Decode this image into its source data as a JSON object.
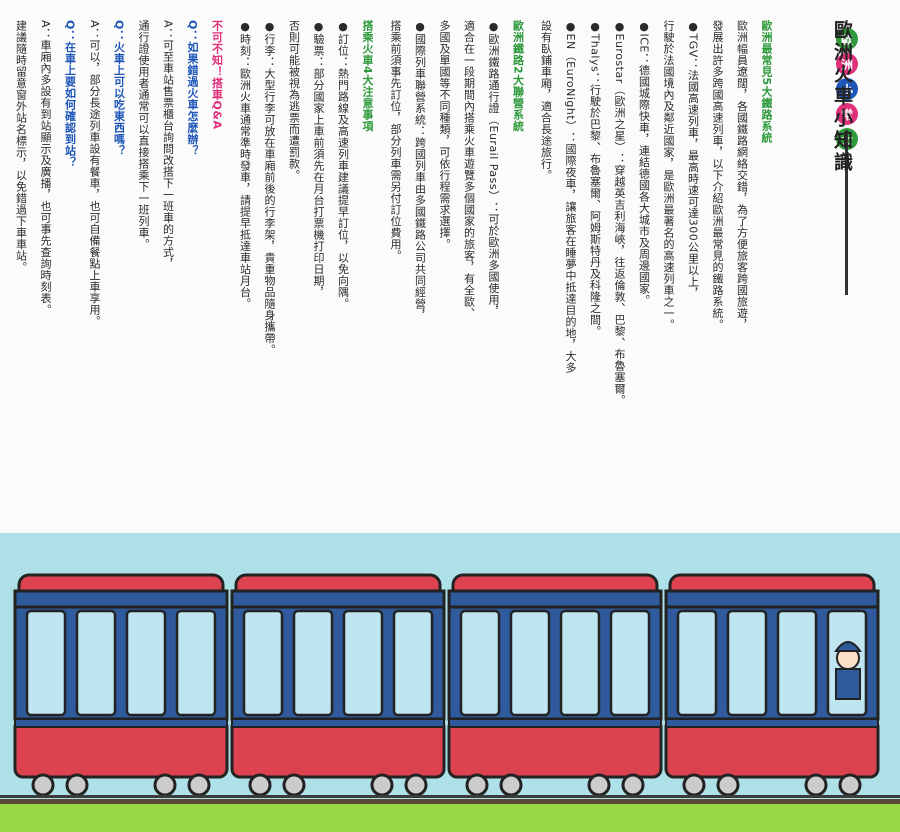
{
  "page": {
    "title": "歐洲火車小知識",
    "badges": [
      "歐",
      "洲",
      "小",
      "常",
      "士"
    ],
    "badge_colors": [
      "#2e9a3c",
      "#e0307a",
      "#1e56b8",
      "#e0307a",
      "#2e9a3c"
    ]
  },
  "columns": [
    {
      "cls": "head",
      "text": "歐洲最常見5大鐵路系統"
    },
    {
      "cls": "",
      "text": "歐洲幅員遼闊，各國鐵路網絡交錯，為了方便旅客跨國旅遊，"
    },
    {
      "cls": "",
      "text": "發展出許多跨國高速列車，以下介紹歐洲最常見的鐵路系統。"
    },
    {
      "cls": "",
      "text": "●TGV：法國高速列車，最高時速可達300公里以上，"
    },
    {
      "cls": "",
      "text": "行駛於法國境內及鄰近國家，是歐洲最著名的高速列車之一。"
    },
    {
      "cls": "",
      "text": "●ICE：德國城際快車，連結德國各大城市及周邊國家。"
    },
    {
      "cls": "",
      "text": "●Eurostar（歐洲之星）：穿越英吉利海峽，往返倫敦、巴黎、布魯塞爾。"
    },
    {
      "cls": "",
      "text": "●Thalys：行駛於巴黎、布魯塞爾、阿姆斯特丹及科隆之間。"
    },
    {
      "cls": "",
      "text": "●EN（EuroNight）：國際夜車，讓旅客在睡夢中抵達目的地，大多"
    },
    {
      "cls": "",
      "text": "設有臥鋪車廂，適合長途旅行。"
    },
    {
      "cls": "head",
      "text": "歐洲鐵路2大聯營系統"
    },
    {
      "cls": "",
      "text": "●歐洲鐵路通行證（Eurail Pass）：可於歐洲多國使用，"
    },
    {
      "cls": "",
      "text": "適合在一段期間內搭乘火車遊覽多個國家的旅客，有全歐、"
    },
    {
      "cls": "",
      "text": "多國及單國等不同種類，可依行程需求選擇。"
    },
    {
      "cls": "",
      "text": "●國際列車聯營系統：跨國列車由多國鐵路公司共同經營，"
    },
    {
      "cls": "",
      "text": "搭乘前須事先訂位，部分列車需另付訂位費用。"
    },
    {
      "cls": "head",
      "text": "搭乘火車4大注意事項"
    },
    {
      "cls": "",
      "text": "●訂位：熱門路線及高速列車建議提早訂位，以免向隅。"
    },
    {
      "cls": "",
      "text": "●驗票：部分國家上車前須先在月台打票機打印日期，"
    },
    {
      "cls": "",
      "text": "否則可能被視為逃票而遭罰款。"
    },
    {
      "cls": "",
      "text": "●行李：大型行李可放在車廂前後的行李架，貴重物品隨身攜帶。"
    },
    {
      "cls": "",
      "text": "●時刻：歐洲火車通常準時發車，請提早抵達車站月台。"
    },
    {
      "cls": "pink",
      "text": "不可不知！搭車Q&A"
    },
    {
      "cls": "q",
      "text": "Q：如果錯過火車怎麼辦？"
    },
    {
      "cls": "",
      "text": "A：可至車站售票櫃台詢問改搭下一班車的方式，"
    },
    {
      "cls": "",
      "text": "通行證使用者通常可以直接搭乘下一班列車。"
    },
    {
      "cls": "q",
      "text": "Q：火車上可以吃東西嗎？"
    },
    {
      "cls": "",
      "text": "A：可以，部分長途列車設有餐車，也可自備餐點上車享用。"
    },
    {
      "cls": "q",
      "text": "Q：在車上要如何確認到站？"
    },
    {
      "cls": "",
      "text": "A：車廂內多設有到站顯示及廣播，也可事先查詢時刻表。"
    },
    {
      "cls": "",
      "text": "建議隨時留意窗外站名標示，以免錯過下車車站。"
    }
  ],
  "scene": {
    "sky_color": "#aee0e8",
    "grass_color": "#9bd845",
    "train_colors": {
      "roof": "#dc4250",
      "body_top": "#2f5b9c",
      "windows": "#bfe6f0",
      "stripe": "#2f5b9c",
      "bottom": "#dc4250"
    },
    "car_count": 4
  }
}
